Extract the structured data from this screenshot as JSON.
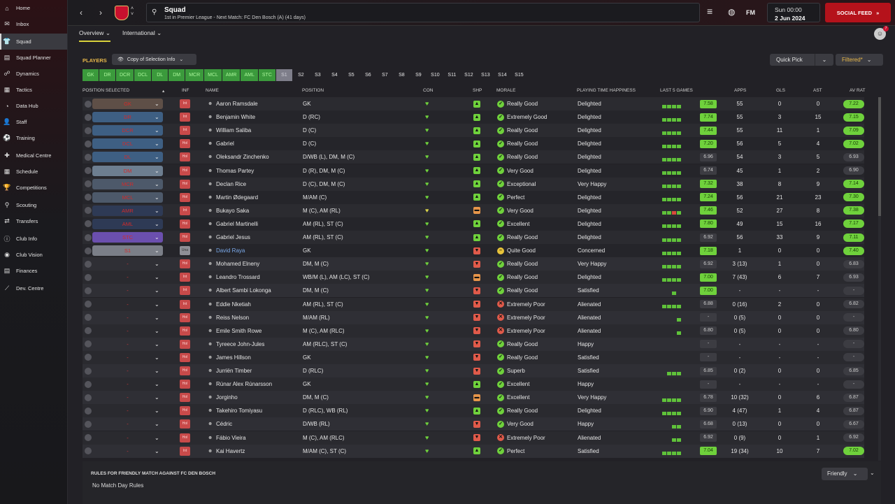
{
  "sidebar": {
    "items": [
      {
        "label": "Home",
        "icon": "home-icon",
        "glyph": "⌂",
        "active": false
      },
      {
        "label": "Inbox",
        "icon": "inbox-icon",
        "glyph": "✉",
        "active": false
      },
      {
        "label": "Squad",
        "icon": "shirt-icon",
        "glyph": "👕",
        "active": true
      },
      {
        "label": "Squad Planner",
        "icon": "planner-icon",
        "glyph": "▤",
        "active": false
      },
      {
        "label": "Dynamics",
        "icon": "dynamics-icon",
        "glyph": "☍",
        "active": false
      },
      {
        "label": "Tactics",
        "icon": "tactics-icon",
        "glyph": "▦",
        "active": false
      },
      {
        "label": "Data Hub",
        "icon": "data-hub-icon",
        "glyph": "◔",
        "active": false
      },
      {
        "label": "Staff",
        "icon": "staff-icon",
        "glyph": "👤",
        "active": false
      },
      {
        "label": "Training",
        "icon": "training-icon",
        "glyph": "⚽",
        "active": false
      },
      {
        "label": "Medical Centre",
        "icon": "medical-icon",
        "glyph": "✚",
        "active": false
      },
      {
        "label": "Schedule",
        "icon": "calendar-icon",
        "glyph": "▦",
        "active": false
      },
      {
        "label": "Competitions",
        "icon": "trophy-icon",
        "glyph": "🏆",
        "active": false
      },
      {
        "label": "Scouting",
        "icon": "scouting-icon",
        "glyph": "⚲",
        "active": false
      },
      {
        "label": "Transfers",
        "icon": "transfers-icon",
        "glyph": "⇄",
        "active": false
      },
      {
        "label": "Club Info",
        "icon": "info-icon",
        "glyph": "ⓘ",
        "active": false
      },
      {
        "label": "Club Vision",
        "icon": "vision-icon",
        "glyph": "◉",
        "active": false
      },
      {
        "label": "Finances",
        "icon": "finances-icon",
        "glyph": "▤",
        "active": false
      },
      {
        "label": "Dev. Centre",
        "icon": "dev-centre-icon",
        "glyph": "⟋",
        "active": false
      }
    ]
  },
  "topbar": {
    "title": "Squad",
    "subtitle": "1st in Premier League - Next Match: FC Den Bosch (A) (41 days)",
    "date_line1": "Sun 00:00",
    "date_line2": "2 Jun 2024",
    "social_feed": "SOCIAL FEED",
    "fm_label": "FM",
    "notif_count": "7"
  },
  "tabs": {
    "overview": "Overview",
    "international": "International"
  },
  "toolbar": {
    "players_label": "PLAYERS",
    "copy_selection": "Copy of Selection Info",
    "quick_pick": "Quick Pick",
    "filtered": "Filtered*"
  },
  "position_chips": [
    "GK",
    "DR",
    "DCR",
    "DCL",
    "DL",
    "DM",
    "MCR",
    "MCL",
    "AMR",
    "AML",
    "STC",
    "S1"
  ],
  "set_chips": [
    "S2",
    "S3",
    "S4",
    "S5",
    "S6",
    "S7",
    "S8",
    "S9",
    "S10",
    "S11",
    "S12",
    "S13",
    "S14",
    "S15"
  ],
  "columns": {
    "position_selected": "POSITION SELECTED",
    "inf": "INF",
    "name": "NAME",
    "position": "POSITION",
    "con": "CON",
    "shp": "SHP",
    "morale": "MORALE",
    "pth": "PLAYING TIME HAPPINESS",
    "last5": "LAST 5 GAMES",
    "apps": "APPS",
    "gls": "GLS",
    "ast": "AST",
    "avrat": "AV RAT"
  },
  "players": [
    {
      "sel": "GK",
      "sc": "gk",
      "inf": "Int",
      "name": "Aaron Ramsdale",
      "pos": "GK",
      "shp": "g",
      "mor_i": "g",
      "morale": "Really Good",
      "pth": "Delighted",
      "bars": "gggg",
      "l5": "7.58",
      "l5c": "g",
      "apps": "55",
      "gls": "0",
      "ast": "0",
      "av": "7.22",
      "avc": "g"
    },
    {
      "sel": "DR",
      "sc": "def",
      "inf": "Int",
      "name": "Benjamin White",
      "pos": "D (RC)",
      "shp": "g",
      "mor_i": "g",
      "morale": "Extremely Good",
      "pth": "Delighted",
      "bars": "gggg",
      "l5": "7.74",
      "l5c": "g",
      "apps": "55",
      "gls": "3",
      "ast": "15",
      "av": "7.15",
      "avc": "g"
    },
    {
      "sel": "DCR",
      "sc": "def",
      "inf": "Int",
      "name": "William Saliba",
      "pos": "D (C)",
      "shp": "g",
      "mor_i": "g",
      "morale": "Really Good",
      "pth": "Delighted",
      "bars": "gggg",
      "l5": "7.44",
      "l5c": "g",
      "apps": "55",
      "gls": "11",
      "ast": "1",
      "av": "7.09",
      "avc": "g"
    },
    {
      "sel": "DCL",
      "sc": "def",
      "inf": "Hol",
      "name": "Gabriel",
      "pos": "D (C)",
      "shp": "g",
      "mor_i": "g",
      "morale": "Really Good",
      "pth": "Delighted",
      "bars": "gggg",
      "l5": "7.20",
      "l5c": "g",
      "apps": "56",
      "gls": "5",
      "ast": "4",
      "av": "7.02",
      "avc": "g"
    },
    {
      "sel": "DL",
      "sc": "def",
      "inf": "Hol",
      "name": "Oleksandr Zinchenko",
      "pos": "D/WB (L), DM, M (C)",
      "shp": "g",
      "mor_i": "g",
      "morale": "Really Good",
      "pth": "Delighted",
      "bars": "gggg",
      "l5": "6.96",
      "l5c": "n",
      "apps": "54",
      "gls": "3",
      "ast": "5",
      "av": "6.93",
      "avc": "n"
    },
    {
      "sel": "DM",
      "sc": "dmc",
      "inf": "Hol",
      "name": "Thomas Partey",
      "pos": "D (R), DM, M (C)",
      "shp": "g",
      "mor_i": "g",
      "morale": "Very Good",
      "pth": "Delighted",
      "bars": "gggg",
      "l5": "6.74",
      "l5c": "n",
      "apps": "45",
      "gls": "1",
      "ast": "2",
      "av": "6.90",
      "avc": "n"
    },
    {
      "sel": "MCR",
      "sc": "mid",
      "inf": "Hol",
      "name": "Declan Rice",
      "pos": "D (C), DM, M (C)",
      "shp": "g",
      "mor_i": "g",
      "morale": "Exceptional",
      "pth": "Very Happy",
      "bars": "gggg",
      "l5": "7.32",
      "l5c": "g",
      "apps": "38",
      "gls": "8",
      "ast": "9",
      "av": "7.14",
      "avc": "g"
    },
    {
      "sel": "MCL",
      "sc": "mid",
      "inf": "Hol",
      "name": "Martin Ødegaard",
      "pos": "M/AM (C)",
      "shp": "g",
      "mor_i": "g",
      "morale": "Perfect",
      "pth": "Delighted",
      "bars": "gggg",
      "l5": "7.24",
      "l5c": "g",
      "apps": "56",
      "gls": "21",
      "ast": "23",
      "av": "7.30",
      "avc": "g"
    },
    {
      "sel": "AMR",
      "sc": "att",
      "inf": "Int",
      "name": "Bukayo Saka",
      "pos": "M (C), AM (RL)",
      "shp": "o",
      "mor_i": "g",
      "morale": "Very Good",
      "pth": "Delighted",
      "bars": "ggrg",
      "l5": "7.46",
      "l5c": "g",
      "apps": "52",
      "gls": "27",
      "ast": "8",
      "av": "7.38",
      "avc": "g"
    },
    {
      "sel": "AML",
      "sc": "att",
      "inf": "Hol",
      "name": "Gabriel Martinelli",
      "pos": "AM (RL), ST (C)",
      "shp": "g",
      "mor_i": "g",
      "morale": "Excellent",
      "pth": "Delighted",
      "bars": "gggg",
      "l5": "7.80",
      "l5c": "g",
      "apps": "49",
      "gls": "15",
      "ast": "16",
      "av": "7.17",
      "avc": "g"
    },
    {
      "sel": "STC",
      "sc": "stc",
      "inf": "Hol",
      "name": "Gabriel Jesus",
      "pos": "AM (RL), ST (C)",
      "shp": "g",
      "mor_i": "g",
      "morale": "Really Good",
      "pth": "Delighted",
      "bars": "gggg",
      "l5": "6.92",
      "l5c": "n",
      "apps": "56",
      "gls": "33",
      "ast": "9",
      "av": "7.11",
      "avc": "g"
    },
    {
      "sel": "S1",
      "sc": "sub",
      "inf": "Una",
      "name": "David Raya",
      "pos": "GK",
      "shp": "r",
      "mor_i": "y",
      "morale": "Quite Good",
      "pth": "Concerned",
      "bars": "gggg",
      "l5": "7.18",
      "l5c": "g",
      "apps": "1",
      "gls": "0",
      "ast": "0",
      "av": "7.40",
      "avc": "g",
      "blue": true
    },
    {
      "sel": "-",
      "sc": "res",
      "inf": "Hol",
      "name": "Mohamed Elneny",
      "pos": "DM, M (C)",
      "shp": "r",
      "mor_i": "g",
      "morale": "Really Good",
      "pth": "Very Happy",
      "bars": "gggg",
      "l5": "6.92",
      "l5c": "n",
      "apps": "3 (13)",
      "gls": "1",
      "ast": "0",
      "av": "6.83",
      "avc": "n"
    },
    {
      "sel": "-",
      "sc": "res",
      "inf": "Int",
      "name": "Leandro Trossard",
      "pos": "WB/M (L), AM (LC), ST (C)",
      "shp": "o",
      "mor_i": "g",
      "morale": "Really Good",
      "pth": "Delighted",
      "bars": "gggg",
      "l5": "7.00",
      "l5c": "g",
      "apps": "7 (43)",
      "gls": "6",
      "ast": "7",
      "av": "6.93",
      "avc": "n"
    },
    {
      "sel": "-",
      "sc": "res",
      "inf": "Int",
      "name": "Albert Sambi Lokonga",
      "pos": "DM, M (C)",
      "shp": "r",
      "mor_i": "g",
      "morale": "Really Good",
      "pth": "Satisfied",
      "bars": "__g_",
      "l5": "7.00",
      "l5c": "g",
      "apps": "-",
      "gls": "-",
      "ast": "-",
      "av": "-",
      "avc": "n"
    },
    {
      "sel": "-",
      "sc": "res",
      "inf": "Int",
      "name": "Eddie Nketiah",
      "pos": "AM (RL), ST (C)",
      "shp": "r",
      "mor_i": "r",
      "morale": "Extremely Poor",
      "pth": "Alienated",
      "bars": "gggg",
      "l5": "6.88",
      "l5c": "n",
      "apps": "0 (16)",
      "gls": "2",
      "ast": "0",
      "av": "6.82",
      "avc": "n"
    },
    {
      "sel": "-",
      "sc": "res",
      "inf": "Hol",
      "name": "Reiss Nelson",
      "pos": "M/AM (RL)",
      "shp": "r",
      "mor_i": "r",
      "morale": "Extremely Poor",
      "pth": "Alienated",
      "bars": "___g",
      "l5": "-",
      "l5c": "n",
      "apps": "0 (5)",
      "gls": "0",
      "ast": "0",
      "av": "-",
      "avc": "n"
    },
    {
      "sel": "-",
      "sc": "res",
      "inf": "Hol",
      "name": "Emile Smith Rowe",
      "pos": "M (C), AM (RLC)",
      "shp": "r",
      "mor_i": "r",
      "morale": "Extremely Poor",
      "pth": "Alienated",
      "bars": "___g",
      "l5": "6.80",
      "l5c": "n",
      "apps": "0 (5)",
      "gls": "0",
      "ast": "0",
      "av": "6.80",
      "avc": "n"
    },
    {
      "sel": "-",
      "sc": "res",
      "inf": "Hol",
      "name": "Tyreece John-Jules",
      "pos": "AM (RLC), ST (C)",
      "shp": "r",
      "mor_i": "g",
      "morale": "Really Good",
      "pth": "Happy",
      "bars": "____",
      "l5": "-",
      "l5c": "n",
      "apps": "-",
      "gls": "-",
      "ast": "-",
      "av": "-",
      "avc": "n"
    },
    {
      "sel": "-",
      "sc": "res",
      "inf": "Hol",
      "name": "James Hillson",
      "pos": "GK",
      "shp": "r",
      "mor_i": "g",
      "morale": "Really Good",
      "pth": "Satisfied",
      "bars": "____",
      "l5": "-",
      "l5c": "n",
      "apps": "-",
      "gls": "-",
      "ast": "-",
      "av": "-",
      "avc": "n"
    },
    {
      "sel": "-",
      "sc": "res",
      "inf": "Hol",
      "name": "Jurriën Timber",
      "pos": "D (RLC)",
      "shp": "r",
      "mor_i": "g",
      "morale": "Superb",
      "pth": "Satisfied",
      "bars": "_ggg",
      "l5": "6.85",
      "l5c": "n",
      "apps": "0 (2)",
      "gls": "0",
      "ast": "0",
      "av": "6.85",
      "avc": "n"
    },
    {
      "sel": "-",
      "sc": "res",
      "inf": "Hol",
      "name": "Rúnar Alex Rúnarsson",
      "pos": "GK",
      "shp": "g",
      "mor_i": "g",
      "morale": "Excellent",
      "pth": "Happy",
      "bars": "____",
      "l5": "-",
      "l5c": "n",
      "apps": "-",
      "gls": "-",
      "ast": "-",
      "av": "-",
      "avc": "n"
    },
    {
      "sel": "-",
      "sc": "res",
      "inf": "Hol",
      "name": "Jorginho",
      "pos": "DM, M (C)",
      "shp": "o",
      "mor_i": "g",
      "morale": "Excellent",
      "pth": "Very Happy",
      "bars": "gggg",
      "l5": "6.78",
      "l5c": "n",
      "apps": "10 (32)",
      "gls": "0",
      "ast": "6",
      "av": "6.87",
      "avc": "n"
    },
    {
      "sel": "-",
      "sc": "res",
      "inf": "Hol",
      "name": "Takehiro Tomiyasu",
      "pos": "D (RLC), WB (RL)",
      "shp": "g",
      "mor_i": "g",
      "morale": "Really Good",
      "pth": "Delighted",
      "bars": "gggg",
      "l5": "6.90",
      "l5c": "n",
      "apps": "4 (47)",
      "gls": "1",
      "ast": "4",
      "av": "6.87",
      "avc": "n"
    },
    {
      "sel": "-",
      "sc": "res",
      "inf": "Hol",
      "name": "Cédric",
      "pos": "D/WB (RL)",
      "shp": "r",
      "mor_i": "g",
      "morale": "Very Good",
      "pth": "Happy",
      "bars": "__gg",
      "l5": "6.68",
      "l5c": "n",
      "apps": "0 (13)",
      "gls": "0",
      "ast": "0",
      "av": "6.67",
      "avc": "n"
    },
    {
      "sel": "-",
      "sc": "res",
      "inf": "Hol",
      "name": "Fábio Vieira",
      "pos": "M (C), AM (RLC)",
      "shp": "r",
      "mor_i": "r",
      "morale": "Extremely Poor",
      "pth": "Alienated",
      "bars": "__gg",
      "l5": "6.92",
      "l5c": "n",
      "apps": "0 (9)",
      "gls": "0",
      "ast": "1",
      "av": "6.92",
      "avc": "n"
    },
    {
      "sel": "-",
      "sc": "res",
      "inf": "Int",
      "name": "Kai Havertz",
      "pos": "M/AM (C), ST (C)",
      "shp": "g",
      "mor_i": "g",
      "morale": "Perfect",
      "pth": "Satisfied",
      "bars": "gggg",
      "l5": "7.04",
      "l5c": "g",
      "apps": "19 (34)",
      "gls": "10",
      "ast": "7",
      "av": "7.02",
      "avc": "g"
    }
  ],
  "rules": {
    "title": "RULES FOR FRIENDLY MATCH AGAINST FC DEN BOSCH",
    "value": "No Match Day Rules",
    "friendly": "Friendly"
  },
  "colors": {
    "accent_red": "#b5121b",
    "gold": "#e8b84a",
    "green": "#6fd13c",
    "orange": "#e6954a",
    "red_badge": "#e05a4a"
  }
}
